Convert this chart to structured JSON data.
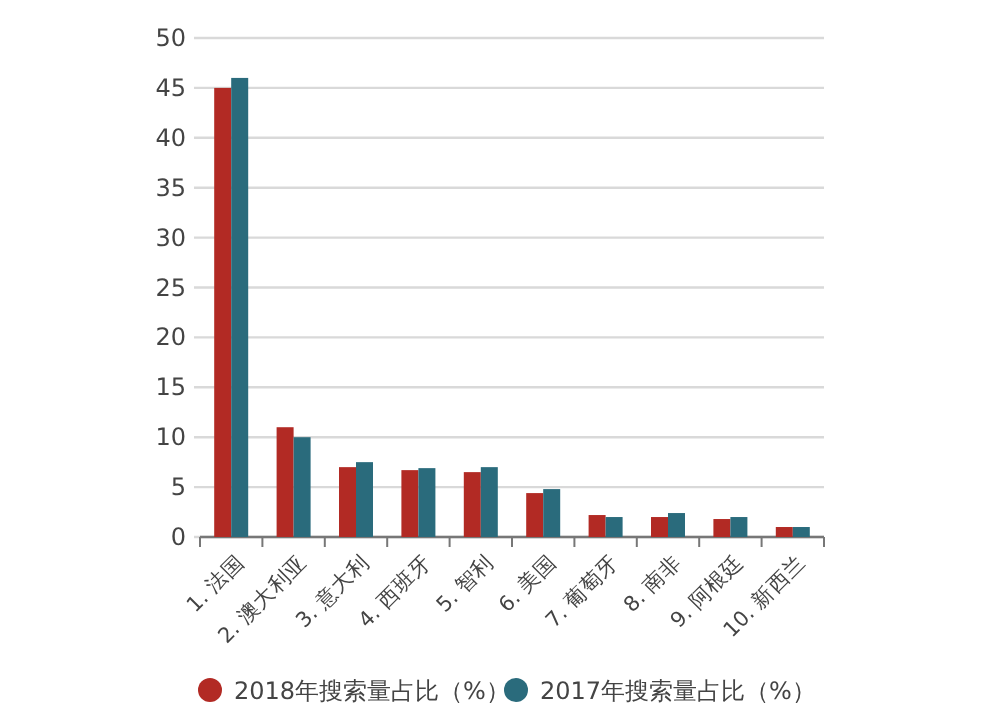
{
  "chart_data": {
    "type": "bar",
    "categories": [
      "1. 法国",
      "2. 澳大利亚",
      "3. 意大利",
      "4. 西班牙",
      "5. 智利",
      "6. 美国",
      "7. 葡萄牙",
      "8. 南非",
      "9. 阿根廷",
      "10. 新西兰"
    ],
    "series": [
      {
        "name": "2018年搜索量占比（%）",
        "color": "#b22a24",
        "values": [
          45,
          11,
          7,
          6.7,
          6.5,
          4.4,
          2.2,
          2,
          1.8,
          1
        ]
      },
      {
        "name": "2017年搜索量占比（%）",
        "color": "#2a6b7c",
        "values": [
          46,
          10,
          7.5,
          6.9,
          7,
          4.8,
          2,
          2.4,
          2,
          1
        ]
      }
    ],
    "ylim": [
      0,
      50
    ],
    "yticks": [
      0,
      5,
      10,
      15,
      20,
      25,
      30,
      35,
      40,
      45,
      50
    ],
    "grid": "y",
    "legend": "bottom"
  }
}
